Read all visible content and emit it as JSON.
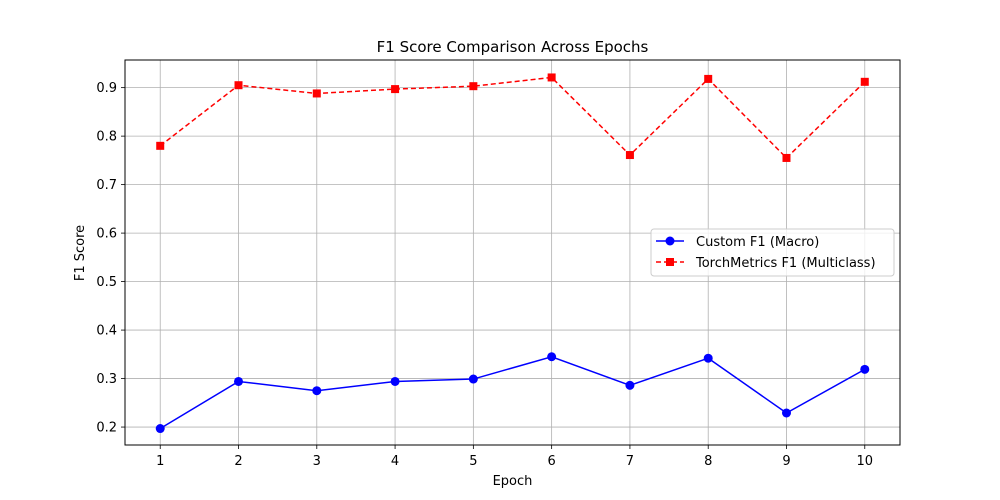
{
  "chart_data": {
    "type": "line",
    "title": "F1 Score Comparison Across Epochs",
    "xlabel": "Epoch",
    "ylabel": "F1 Score",
    "x": [
      1,
      2,
      3,
      4,
      5,
      6,
      7,
      8,
      9,
      10
    ],
    "xlim": [
      0.55,
      10.45
    ],
    "ylim": [
      0.163,
      0.957
    ],
    "xticks": [
      1,
      2,
      3,
      4,
      5,
      6,
      7,
      8,
      9,
      10
    ],
    "yticks": [
      0.2,
      0.3,
      0.4,
      0.5,
      0.6,
      0.7,
      0.8,
      0.9
    ],
    "grid": true,
    "legend_position": "center-right",
    "series": [
      {
        "name": "Custom F1 (Macro)",
        "color": "#0000ff",
        "linestyle": "solid",
        "marker": "circle",
        "values": [
          0.197,
          0.294,
          0.275,
          0.294,
          0.299,
          0.345,
          0.286,
          0.342,
          0.229,
          0.319
        ]
      },
      {
        "name": "TorchMetrics F1 (Multiclass)",
        "color": "#ff0000",
        "linestyle": "dashed",
        "marker": "square",
        "values": [
          0.78,
          0.905,
          0.888,
          0.897,
          0.903,
          0.921,
          0.761,
          0.918,
          0.755,
          0.912
        ]
      }
    ]
  }
}
